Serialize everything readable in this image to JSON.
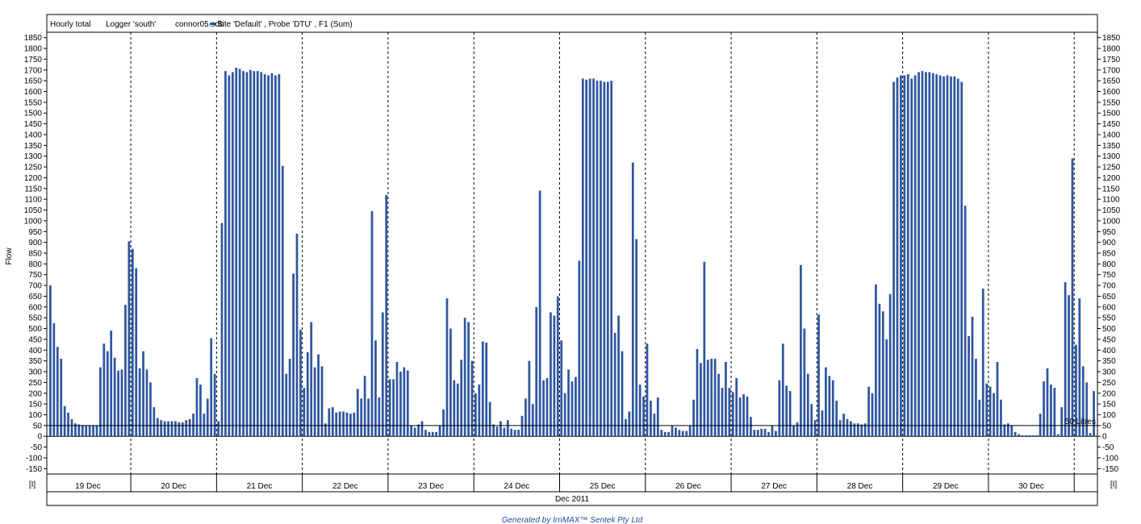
{
  "colors": {
    "bar": "#2f569f",
    "axis": "#000000",
    "footer": "#1f4e9a"
  },
  "header": {
    "report": "Hourly total",
    "logger": "Logger 'south'",
    "file": "connor05.sdb",
    "series_label": "Site 'Default' , Probe 'DTU' , F1 (Sum)"
  },
  "footer": {
    "text": "Generated by IrriMAX™ Sentek Pty Ltd"
  },
  "chart_data": {
    "type": "bar",
    "ylabel": "Flow",
    "xlabel": "Dec 2011",
    "ylim": [
      -175,
      1875
    ],
    "yticks": [
      -150,
      -100,
      -50,
      0,
      50,
      100,
      150,
      200,
      250,
      300,
      350,
      400,
      450,
      500,
      550,
      600,
      650,
      700,
      750,
      800,
      850,
      900,
      950,
      1000,
      1050,
      1100,
      1150,
      1200,
      1250,
      1300,
      1350,
      1400,
      1450,
      1500,
      1550,
      1600,
      1650,
      1700,
      1750,
      1800,
      1850
    ],
    "xlim": [
      0,
      294
    ],
    "day_labels": [
      "19 Dec",
      "20 Dec",
      "21 Dec",
      "22 Dec",
      "23 Dec",
      "24 Dec",
      "25 Dec",
      "26 Dec",
      "27 Dec",
      "28 Dec",
      "29 Dec",
      "30 Dec"
    ],
    "axis_end_label": "[I]",
    "reference_line": {
      "value": 50,
      "label": "50 Litres"
    },
    "bar_start_hour": 1,
    "series": [
      {
        "values": [
          700,
          525,
          415,
          360,
          140,
          110,
          80,
          60,
          55,
          52,
          50,
          50,
          50,
          50,
          320,
          430,
          395,
          490,
          365,
          305,
          310,
          610,
          905,
          870,
          780,
          315,
          395,
          310,
          250,
          135,
          85,
          75,
          70,
          70,
          70,
          70,
          65,
          65,
          75,
          80,
          105,
          270,
          240,
          105,
          175,
          455,
          290,
          70,
          990,
          1695,
          1675,
          1690,
          1710,
          1705,
          1695,
          1690,
          1700,
          1695,
          1695,
          1690,
          1680,
          1675,
          1685,
          1675,
          1680,
          1255,
          290,
          360,
          755,
          940,
          495,
          225,
          390,
          530,
          320,
          380,
          325,
          60,
          130,
          135,
          110,
          115,
          115,
          110,
          105,
          110,
          220,
          175,
          280,
          175,
          1045,
          445,
          180,
          575,
          1120,
          265,
          265,
          345,
          300,
          320,
          305,
          50,
          40,
          55,
          70,
          30,
          20,
          20,
          20,
          50,
          125,
          640,
          500,
          260,
          245,
          355,
          550,
          530,
          350,
          200,
          240,
          440,
          435,
          160,
          55,
          45,
          70,
          40,
          75,
          35,
          30,
          30,
          95,
          175,
          350,
          150,
          600,
          1140,
          260,
          270,
          575,
          560,
          650,
          445,
          200,
          310,
          255,
          275,
          815,
          1660,
          1655,
          1660,
          1660,
          1650,
          1650,
          1645,
          1645,
          1650,
          480,
          560,
          395,
          80,
          115,
          1270,
          915,
          240,
          185,
          430,
          165,
          105,
          180,
          30,
          20,
          20,
          50,
          40,
          30,
          25,
          25,
          50,
          170,
          405,
          340,
          810,
          355,
          360,
          360,
          290,
          225,
          345,
          225,
          205,
          270,
          180,
          195,
          185,
          90,
          30,
          30,
          35,
          35,
          20,
          50,
          25,
          260,
          430,
          235,
          210,
          50,
          65,
          795,
          500,
          290,
          150,
          75,
          565,
          120,
          320,
          280,
          260,
          165,
          75,
          105,
          80,
          70,
          60,
          60,
          55,
          60,
          230,
          200,
          705,
          615,
          580,
          450,
          660,
          1645,
          1665,
          1675,
          1675,
          1680,
          1660,
          1675,
          1690,
          1695,
          1690,
          1690,
          1685,
          1680,
          1675,
          1670,
          1675,
          1670,
          1670,
          1660,
          1645,
          1070,
          465,
          555,
          360,
          170,
          685,
          245,
          230,
          200,
          345,
          170,
          55,
          60,
          50,
          20,
          10,
          5,
          5,
          5,
          5,
          5,
          105,
          255,
          315,
          240,
          225,
          10,
          135,
          715,
          655,
          1290,
          425,
          640,
          325,
          250,
          15,
          210
        ]
      }
    ]
  }
}
